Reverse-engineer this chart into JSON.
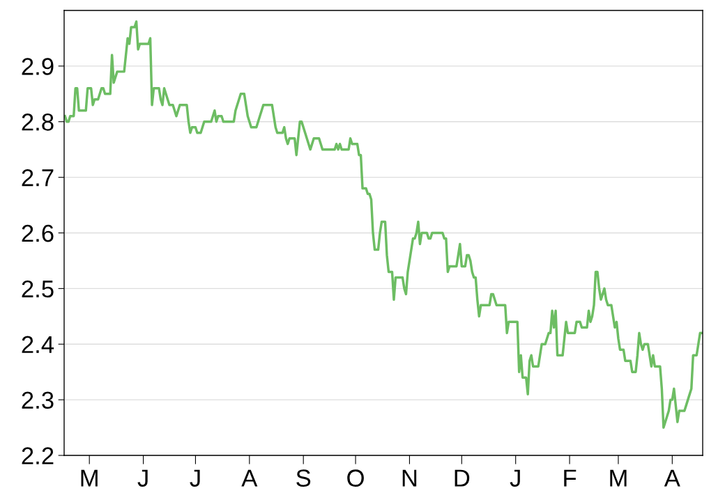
{
  "chart_data": {
    "type": "line",
    "categories": [
      null,
      null,
      null,
      null,
      null,
      null,
      null,
      null,
      null,
      null,
      null,
      null,
      null,
      null,
      "M",
      null,
      null,
      null,
      null,
      null,
      null,
      null,
      null,
      null,
      null,
      null,
      null,
      null,
      null,
      null,
      null,
      null,
      null,
      null,
      null,
      null,
      null,
      null,
      null,
      null,
      null,
      null,
      null,
      null,
      null,
      "J",
      null,
      null,
      null,
      null,
      null,
      null,
      null,
      null,
      null,
      null,
      null,
      null,
      null,
      null,
      null,
      null,
      null,
      null,
      null,
      null,
      null,
      null,
      null,
      null,
      null,
      null,
      null,
      null,
      null,
      "J",
      null,
      null,
      null,
      null,
      null,
      null,
      null,
      null,
      null,
      null,
      null,
      null,
      null,
      null,
      null,
      null,
      null,
      null,
      null,
      null,
      null,
      null,
      null,
      null,
      null,
      null,
      null,
      null,
      null,
      null,
      "A",
      null,
      null,
      null,
      null,
      null,
      null,
      null,
      null,
      null,
      null,
      null,
      null,
      null,
      null,
      null,
      null,
      null,
      null,
      null,
      null,
      null,
      null,
      null,
      null,
      null,
      null,
      null,
      null,
      null,
      null,
      "S",
      null,
      null,
      null,
      null,
      null,
      null,
      null,
      null,
      null,
      null,
      null,
      null,
      null,
      null,
      null,
      null,
      null,
      null,
      null,
      null,
      null,
      null,
      null,
      null,
      null,
      null,
      null,
      null,
      null,
      "O",
      null,
      null,
      null,
      null,
      null,
      null,
      null,
      null,
      null,
      null,
      null,
      null,
      null,
      null,
      null,
      null,
      null,
      null,
      null,
      null,
      null,
      null,
      null,
      null,
      null,
      null,
      null,
      null,
      null,
      null,
      "N",
      null,
      null,
      null,
      null,
      null,
      null,
      null,
      null,
      null,
      null,
      null,
      null,
      null,
      null,
      null,
      null,
      null,
      null,
      null,
      null,
      null,
      null,
      null,
      null,
      null,
      null,
      null,
      null,
      null,
      "D",
      null,
      null,
      null,
      null,
      null,
      null,
      null,
      null,
      null,
      null,
      null,
      null,
      null,
      null,
      null,
      null,
      null,
      null,
      null,
      null,
      null,
      null,
      null,
      null,
      null,
      null,
      null,
      null,
      null,
      null,
      "J",
      null,
      null,
      null,
      null,
      null,
      null,
      null,
      null,
      null,
      null,
      null,
      null,
      null,
      null,
      null,
      null,
      null,
      null,
      null,
      null,
      null,
      null,
      null,
      null,
      null,
      null,
      null,
      null,
      null,
      null,
      "F",
      null,
      null,
      null,
      null,
      null,
      null,
      null,
      null,
      null,
      null,
      null,
      null,
      null,
      null,
      null,
      null,
      null,
      null,
      null,
      null,
      null,
      null,
      null,
      null,
      null,
      null,
      null,
      "M",
      null,
      null,
      null,
      null,
      null,
      null,
      null,
      null,
      null,
      null,
      null,
      null,
      null,
      null,
      null,
      null,
      null,
      null,
      null,
      null,
      null,
      null,
      null,
      null,
      null,
      null,
      null,
      null,
      null,
      null,
      "A",
      null,
      null,
      null,
      null,
      null,
      null,
      null,
      null,
      null,
      null,
      null,
      null,
      null,
      null,
      null,
      null,
      null
    ],
    "series": [
      {
        "color": "#6dbd63",
        "values": [
          2.81,
          2.8,
          2.8,
          2.81,
          2.81,
          2.81,
          2.86,
          2.86,
          2.82,
          2.82,
          2.82,
          2.82,
          2.82,
          2.86,
          2.86,
          2.86,
          2.83,
          2.84,
          2.84,
          2.84,
          2.85,
          2.86,
          2.86,
          2.85,
          2.85,
          2.85,
          2.85,
          2.92,
          2.87,
          2.88,
          2.89,
          2.89,
          2.89,
          2.89,
          2.89,
          2.92,
          2.95,
          2.94,
          2.97,
          2.97,
          2.97,
          2.98,
          2.93,
          2.94,
          2.94,
          2.94,
          2.94,
          2.94,
          2.94,
          2.95,
          2.83,
          2.86,
          2.86,
          2.86,
          2.86,
          2.84,
          2.83,
          2.86,
          2.85,
          2.84,
          2.83,
          2.83,
          2.83,
          2.82,
          2.81,
          2.82,
          2.83,
          2.83,
          2.83,
          2.83,
          2.83,
          2.8,
          2.78,
          2.79,
          2.79,
          2.79,
          2.78,
          2.78,
          2.78,
          2.79,
          2.8,
          2.8,
          2.8,
          2.8,
          2.8,
          2.81,
          2.82,
          2.8,
          2.81,
          2.81,
          2.81,
          2.8,
          2.8,
          2.8,
          2.8,
          2.8,
          2.8,
          2.8,
          2.82,
          2.83,
          2.84,
          2.85,
          2.85,
          2.85,
          2.83,
          2.81,
          2.8,
          2.79,
          2.79,
          2.79,
          2.79,
          2.8,
          2.81,
          2.82,
          2.83,
          2.83,
          2.83,
          2.83,
          2.83,
          2.83,
          2.81,
          2.79,
          2.78,
          2.78,
          2.78,
          2.78,
          2.79,
          2.77,
          2.76,
          2.77,
          2.77,
          2.77,
          2.77,
          2.74,
          2.77,
          2.8,
          2.8,
          2.79,
          2.78,
          2.77,
          2.76,
          2.75,
          2.76,
          2.77,
          2.77,
          2.77,
          2.77,
          2.76,
          2.75,
          2.75,
          2.75,
          2.75,
          2.75,
          2.75,
          2.75,
          2.75,
          2.76,
          2.75,
          2.76,
          2.75,
          2.75,
          2.75,
          2.75,
          2.75,
          2.77,
          2.76,
          2.76,
          2.76,
          2.76,
          2.74,
          2.74,
          2.68,
          2.68,
          2.68,
          2.67,
          2.67,
          2.66,
          2.6,
          2.57,
          2.57,
          2.57,
          2.6,
          2.62,
          2.62,
          2.62,
          2.56,
          2.53,
          2.53,
          2.53,
          2.48,
          2.52,
          2.52,
          2.52,
          2.52,
          2.52,
          2.5,
          2.49,
          2.53,
          2.55,
          2.57,
          2.59,
          2.59,
          2.6,
          2.62,
          2.58,
          2.6,
          2.6,
          2.6,
          2.6,
          2.59,
          2.59,
          2.6,
          2.6,
          2.6,
          2.6,
          2.6,
          2.6,
          2.6,
          2.59,
          2.59,
          2.53,
          2.54,
          2.54,
          2.54,
          2.54,
          2.54,
          2.56,
          2.58,
          2.54,
          2.54,
          2.54,
          2.56,
          2.56,
          2.55,
          2.53,
          2.52,
          2.52,
          2.48,
          2.45,
          2.47,
          2.47,
          2.47,
          2.47,
          2.47,
          2.47,
          2.49,
          2.49,
          2.48,
          2.47,
          2.47,
          2.47,
          2.47,
          2.47,
          2.47,
          2.42,
          2.44,
          2.44,
          2.44,
          2.44,
          2.44,
          2.44,
          2.35,
          2.38,
          2.34,
          2.34,
          2.34,
          2.31,
          2.37,
          2.38,
          2.36,
          2.36,
          2.36,
          2.36,
          2.38,
          2.4,
          2.4,
          2.4,
          2.41,
          2.42,
          2.42,
          2.46,
          2.43,
          2.46,
          2.38,
          2.38,
          2.38,
          2.38,
          2.41,
          2.44,
          2.42,
          2.42,
          2.42,
          2.42,
          2.42,
          2.44,
          2.44,
          2.44,
          2.43,
          2.43,
          2.43,
          2.43,
          2.46,
          2.44,
          2.45,
          2.47,
          2.53,
          2.53,
          2.5,
          2.48,
          2.49,
          2.5,
          2.48,
          2.47,
          2.47,
          2.47,
          2.45,
          2.43,
          2.44,
          2.41,
          2.39,
          2.39,
          2.39,
          2.37,
          2.37,
          2.37,
          2.37,
          2.35,
          2.35,
          2.35,
          2.38,
          2.42,
          2.4,
          2.39,
          2.4,
          2.4,
          2.4,
          2.38,
          2.36,
          2.38,
          2.36,
          2.36,
          2.36,
          2.36,
          2.32,
          2.25,
          2.26,
          2.27,
          2.28,
          2.3,
          2.3,
          2.32,
          2.29,
          2.26,
          2.28,
          2.28,
          2.28,
          2.28,
          2.29,
          2.3,
          2.31,
          2.32,
          2.38,
          2.38,
          2.38,
          2.4,
          2.42,
          2.42
        ]
      }
    ],
    "ylim": [
      2.2,
      3.0
    ],
    "yticks": [
      2.2,
      2.3,
      2.4,
      2.5,
      2.6,
      2.7,
      2.8,
      2.9
    ],
    "grid": "y",
    "marker": "none",
    "line_style": "solid"
  }
}
